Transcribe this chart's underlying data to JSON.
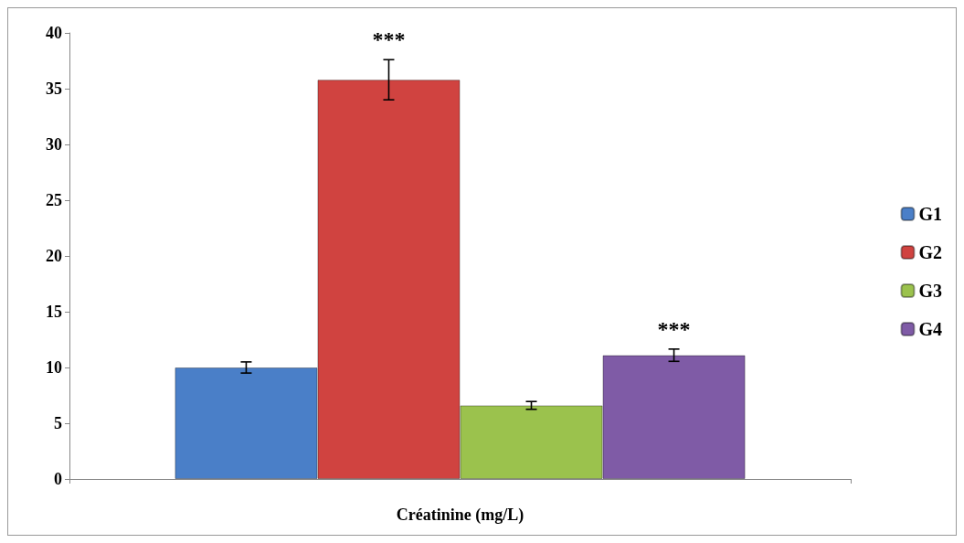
{
  "chart_data": {
    "type": "bar",
    "xlabel": "Créatinine (mg/L)",
    "categories": [
      null
    ],
    "series": [
      {
        "name": "G1",
        "color": "#4a7fc8",
        "values": [
          10.0
        ],
        "errors": [
          0.5
        ]
      },
      {
        "name": "G2",
        "color": "#d04340",
        "values": [
          35.8
        ],
        "errors": [
          1.8
        ]
      },
      {
        "name": "G3",
        "color": "#9bc24d",
        "values": [
          6.6
        ],
        "errors": [
          0.35
        ]
      },
      {
        "name": "G4",
        "color": "#7f5ba6",
        "values": [
          11.1
        ],
        "errors": [
          0.55
        ]
      }
    ],
    "ylim": [
      0,
      40
    ],
    "yticks": [
      0,
      5,
      10,
      15,
      20,
      25,
      30,
      35,
      40
    ],
    "grid": false,
    "legend": "right",
    "annotations": [
      "***",
      "***"
    ]
  }
}
